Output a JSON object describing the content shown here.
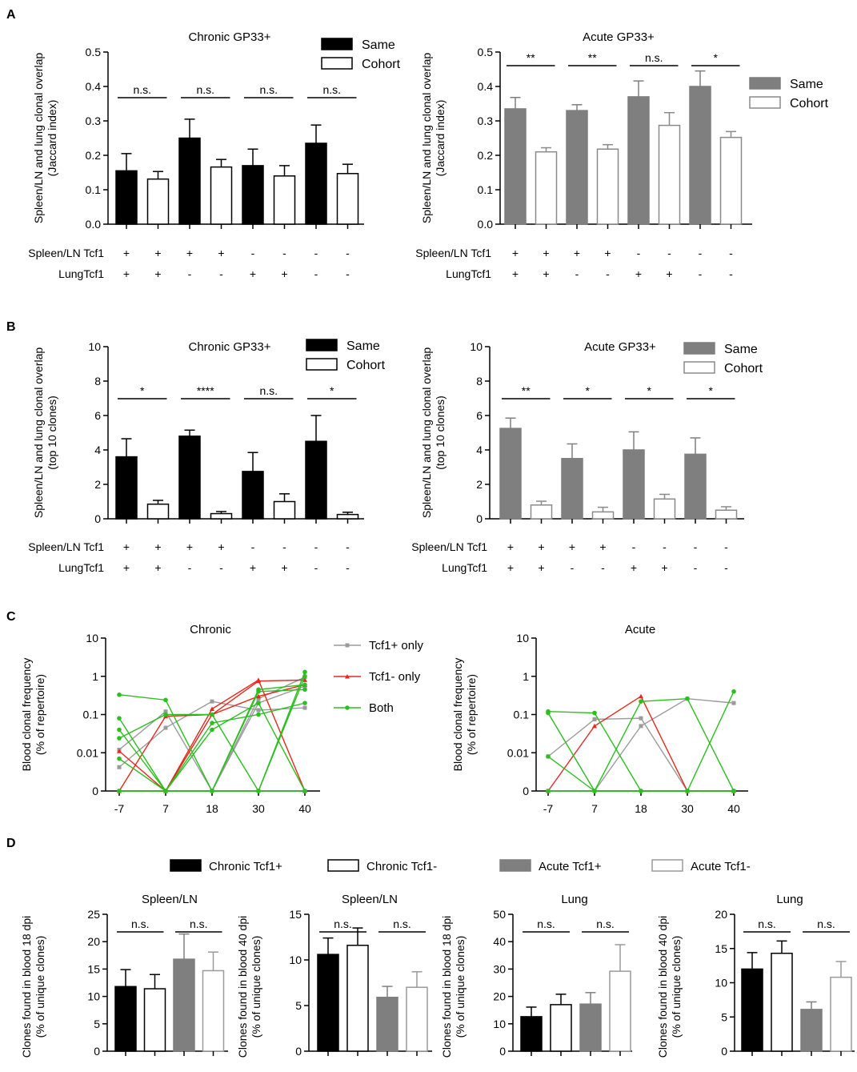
{
  "panel_labels": [
    "A",
    "B",
    "C",
    "D"
  ],
  "colors": {
    "same_chronic": "#000000",
    "same_acute": "#7f7f7f",
    "cohort": "#ffffff",
    "acute_tcf1_minus_edge": "#9a9a9a",
    "tcf1_plus_only": "#9b9b9b",
    "tcf1_minus_only": "#e8281d",
    "both": "#2bbf1f"
  },
  "row_labels": {
    "spleen": "Spleen/LN Tcf1",
    "lung": "LungTcf1"
  },
  "chart_data": [
    {
      "id": "A-chronic",
      "type": "bar",
      "title": "Chronic GP33+",
      "ylabel": [
        "Spleen/LN and lung clonal overlap",
        "(Jaccard index)"
      ],
      "ylim": [
        0,
        0.5
      ],
      "yticks": [
        "0.0",
        "0.1",
        "0.2",
        "0.3",
        "0.4",
        "0.5"
      ],
      "legend": [
        "Same",
        "Cohort"
      ],
      "values": [
        0.155,
        0.131,
        0.25,
        0.166,
        0.17,
        0.14,
        0.235,
        0.147
      ],
      "errors": [
        0.05,
        0.022,
        0.055,
        0.022,
        0.048,
        0.03,
        0.053,
        0.027
      ],
      "significance": [
        "n.s.",
        "n.s.",
        "n.s.",
        "n.s."
      ],
      "spleen_tcf1": [
        "+",
        "+",
        "+",
        "+",
        "-",
        "-",
        "-",
        "-"
      ],
      "lung_tcf1": [
        "+",
        "+",
        "-",
        "-",
        "+",
        "+",
        "-",
        "-"
      ]
    },
    {
      "id": "A-acute",
      "type": "bar",
      "title": "Acute GP33+",
      "ylabel": [
        "Spleen/LN and lung clonal overlap",
        "(Jaccard index)"
      ],
      "ylim": [
        0,
        0.5
      ],
      "yticks": [
        "0.0",
        "0.1",
        "0.2",
        "0.3",
        "0.4",
        "0.5"
      ],
      "legend": [
        "Same",
        "Cohort"
      ],
      "values": [
        0.335,
        0.21,
        0.33,
        0.218,
        0.37,
        0.287,
        0.4,
        0.252
      ],
      "errors": [
        0.033,
        0.012,
        0.017,
        0.013,
        0.046,
        0.037,
        0.045,
        0.017
      ],
      "significance": [
        "**",
        "**",
        "n.s.",
        "*"
      ],
      "spleen_tcf1": [
        "+",
        "+",
        "+",
        "+",
        "-",
        "-",
        "-",
        "-"
      ],
      "lung_tcf1": [
        "+",
        "+",
        "-",
        "-",
        "+",
        "+",
        "-",
        "-"
      ]
    },
    {
      "id": "B-chronic",
      "type": "bar",
      "title": "Chronic GP33+",
      "ylabel": [
        "Spleen/LN and lung clonal overlap",
        "(top 10 clones)"
      ],
      "ylim": [
        0,
        10
      ],
      "yticks": [
        "0",
        "2",
        "4",
        "6",
        "8",
        "10"
      ],
      "legend": [
        "Same",
        "Cohort"
      ],
      "values": [
        3.6,
        0.85,
        4.8,
        0.3,
        2.75,
        1.0,
        4.5,
        0.25
      ],
      "errors": [
        1.05,
        0.22,
        0.35,
        0.12,
        1.1,
        0.45,
        1.5,
        0.13
      ],
      "significance": [
        "*",
        "****",
        "n.s.",
        "*"
      ],
      "spleen_tcf1": [
        "+",
        "+",
        "+",
        "+",
        "-",
        "-",
        "-",
        "-"
      ],
      "lung_tcf1": [
        "+",
        "+",
        "-",
        "-",
        "+",
        "+",
        "-",
        "-"
      ]
    },
    {
      "id": "B-acute",
      "type": "bar",
      "title": "Acute GP33+",
      "ylabel": [
        "Spleen/LN and lung clonal overlap",
        "(top 10 clones)"
      ],
      "ylim": [
        0,
        10
      ],
      "yticks": [
        "0",
        "2",
        "4",
        "6",
        "8",
        "10"
      ],
      "legend": [
        "Same",
        "Cohort"
      ],
      "values": [
        5.25,
        0.8,
        3.5,
        0.4,
        4.0,
        1.15,
        3.75,
        0.5
      ],
      "errors": [
        0.6,
        0.22,
        0.85,
        0.27,
        1.05,
        0.27,
        0.95,
        0.2
      ],
      "significance": [
        "**",
        "*",
        "*",
        "*"
      ],
      "spleen_tcf1": [
        "+",
        "+",
        "+",
        "+",
        "-",
        "-",
        "-",
        "-"
      ],
      "lung_tcf1": [
        "+",
        "+",
        "-",
        "-",
        "+",
        "+",
        "-",
        "-"
      ]
    },
    {
      "id": "C-chronic",
      "type": "line",
      "title": "Chronic",
      "ylabel": [
        "Blood clonal frequency",
        "(% of repertoire)"
      ],
      "x": [
        -7,
        7,
        18,
        30,
        40
      ],
      "xticks": [
        "-7",
        "7",
        "18",
        "30",
        "40"
      ],
      "yticks": [
        "0",
        "0.01",
        "0.1",
        "1",
        "10"
      ],
      "yscale": "log with zero",
      "legend": [
        "Tcf1+ only",
        "Tcf1- only",
        "Both"
      ],
      "series": [
        {
          "group": "Tcf1+ only",
          "values": [
            0.0042,
            0.045,
            0.22,
            0.13,
            0.15
          ]
        },
        {
          "group": "Tcf1+ only",
          "values": [
            0.012,
            0.12,
            0.0,
            0.26,
            0.95
          ]
        },
        {
          "group": "Tcf1+ only",
          "values": [
            0.0,
            0.0,
            0.0,
            0.2,
            0.55
          ]
        },
        {
          "group": "Tcf1+ only",
          "values": [
            0.0,
            0.0,
            0.0,
            0.0,
            0.0
          ]
        },
        {
          "group": "Tcf1- only",
          "values": [
            0.011,
            0.0,
            0.1,
            0.75,
            0.8
          ]
        },
        {
          "group": "Tcf1- only",
          "values": [
            0.0,
            0.09,
            0.1,
            0.3,
            0.6
          ]
        },
        {
          "group": "Tcf1- only",
          "values": [
            0.0,
            0.0,
            0.14,
            0.8,
            0.0
          ]
        },
        {
          "group": "Both",
          "values": [
            0.33,
            0.24,
            0.0,
            0.0,
            1.0
          ]
        },
        {
          "group": "Both",
          "values": [
            0.08,
            0.0,
            0.04,
            0.2,
            0.0
          ]
        },
        {
          "group": "Both",
          "values": [
            0.04,
            0.0,
            0.0,
            0.45,
            0.6
          ]
        },
        {
          "group": "Both",
          "values": [
            0.024,
            0.1,
            0.1,
            0.0,
            1.3
          ]
        },
        {
          "group": "Both",
          "values": [
            0.007,
            0.0,
            0.06,
            0.1,
            0.2
          ]
        },
        {
          "group": "Both",
          "values": [
            0.0,
            0.0,
            0.0,
            0.4,
            0.45
          ]
        },
        {
          "group": "Both",
          "values": [
            0.0,
            0.0,
            0.0,
            0.0,
            0.0
          ]
        }
      ]
    },
    {
      "id": "C-acute",
      "type": "line",
      "title": "Acute",
      "ylabel": [
        "Blood clonal frequency",
        "(% of repertoire)"
      ],
      "x": [
        -7,
        7,
        18,
        30,
        40
      ],
      "xticks": [
        "-7",
        "7",
        "18",
        "30",
        "40"
      ],
      "yticks": [
        "0",
        "0.01",
        "0.1",
        "1",
        "10"
      ],
      "yscale": "log with zero",
      "series": [
        {
          "group": "Tcf1+ only",
          "values": [
            0.008,
            0.075,
            0.08,
            0.0,
            0.0
          ]
        },
        {
          "group": "Tcf1+ only",
          "values": [
            0.0,
            0.0,
            0.05,
            0.26,
            0.2
          ]
        },
        {
          "group": "Tcf1- only",
          "values": [
            0.0,
            0.05,
            0.3,
            0.0,
            0.0
          ]
        },
        {
          "group": "Both",
          "values": [
            0.12,
            0.11,
            0.0,
            0.0,
            0.0
          ]
        },
        {
          "group": "Both",
          "values": [
            0.11,
            0.0,
            0.0,
            0.0,
            0.0
          ]
        },
        {
          "group": "Both",
          "values": [
            0.008,
            0.0,
            0.22,
            0.26,
            0.0
          ]
        },
        {
          "group": "Both",
          "values": [
            0.0,
            0.0,
            0.0,
            0.0,
            0.4
          ]
        }
      ]
    },
    {
      "id": "D-legend",
      "type": "bar",
      "role": "legend",
      "legend": [
        "Chronic Tcf1+",
        "Chronic Tcf1-",
        "Acute Tcf1+",
        "Acute Tcf1-"
      ]
    },
    {
      "id": "D1",
      "type": "bar",
      "title": "Spleen/LN",
      "ylabel": [
        "Clones found in blood 18 dpi",
        "(% of unique clones)"
      ],
      "ylim": [
        0,
        25
      ],
      "yticks": [
        "0",
        "5",
        "10",
        "15",
        "20",
        "25"
      ],
      "values": [
        11.8,
        11.4,
        16.8,
        14.7
      ],
      "errors": [
        3.1,
        2.6,
        4.6,
        3.4
      ],
      "significance": [
        "n.s.",
        "n.s."
      ]
    },
    {
      "id": "D2",
      "type": "bar",
      "title": "Spleen/LN",
      "ylabel": [
        "Clones found in blood 40 dpi",
        "(% of unique clones)"
      ],
      "ylim": [
        0,
        15
      ],
      "yticks": [
        "0",
        "5",
        "10",
        "15"
      ],
      "values": [
        10.6,
        11.6,
        5.9,
        7.0
      ],
      "errors": [
        1.8,
        1.9,
        1.2,
        1.7
      ],
      "significance": [
        "n.s.",
        "n.s."
      ]
    },
    {
      "id": "D3",
      "type": "bar",
      "title": "Lung",
      "ylabel": [
        "Clones found in blood 18 dpi",
        "(% of unique clones)"
      ],
      "ylim": [
        0,
        50
      ],
      "yticks": [
        "0",
        "10",
        "20",
        "30",
        "40",
        "50"
      ],
      "values": [
        12.6,
        17.0,
        17.2,
        29.2
      ],
      "errors": [
        3.5,
        3.8,
        4.2,
        9.7
      ],
      "significance": [
        "n.s.",
        "n.s."
      ]
    },
    {
      "id": "D4",
      "type": "bar",
      "title": "Lung",
      "ylabel": [
        "Clones found in blood 40 dpi",
        "(% of unique clones)"
      ],
      "ylim": [
        0,
        20
      ],
      "yticks": [
        "0",
        "5",
        "10",
        "15",
        "20"
      ],
      "values": [
        12.0,
        14.3,
        6.1,
        10.8
      ],
      "errors": [
        2.4,
        1.8,
        1.1,
        2.3
      ],
      "significance": [
        "n.s.",
        "n.s."
      ]
    }
  ]
}
